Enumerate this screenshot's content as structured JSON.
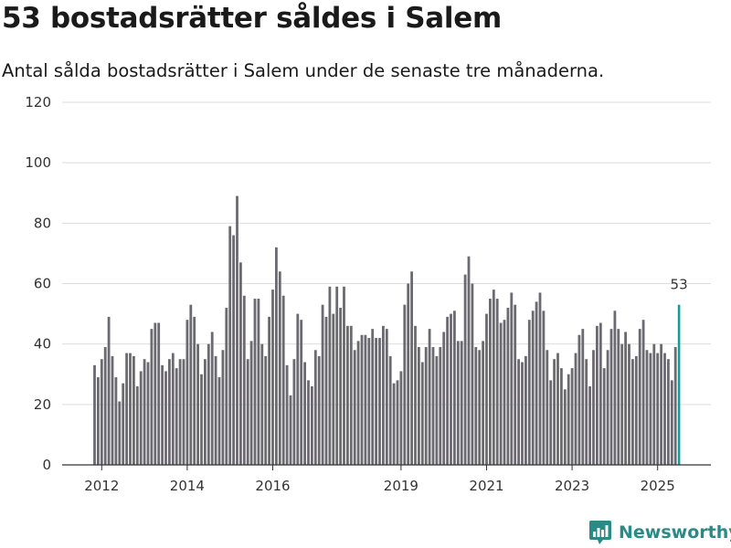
{
  "header": {
    "title": "53 bostadsrätter såldes i Salem",
    "subtitle": "Antal sålda bostadsrätter i Salem under de senaste tre månaderna."
  },
  "brand": {
    "name": "Newsworthy",
    "icon": "newsworthy-chart-icon",
    "color": "#2a8a86"
  },
  "colors": {
    "bar": "#6b6a70",
    "highlight": "#1a9a94",
    "grid": "#dddddd",
    "axis": "#333333"
  },
  "chart_data": {
    "type": "bar",
    "title": "53 bostadsrätter såldes i Salem",
    "xlabel": "",
    "ylabel": "",
    "ylim": [
      0,
      120
    ],
    "yticks": [
      0,
      20,
      40,
      60,
      80,
      100,
      120
    ],
    "x_start": "2011-11",
    "xticks": [
      {
        "label": "2012",
        "index": 2
      },
      {
        "label": "2014",
        "index": 26
      },
      {
        "label": "2016",
        "index": 50
      },
      {
        "label": "2019",
        "index": 86
      },
      {
        "label": "2021",
        "index": 110
      },
      {
        "label": "2023",
        "index": 134
      },
      {
        "label": "2025",
        "index": 158
      }
    ],
    "values": [
      33,
      29,
      35,
      39,
      49,
      36,
      29,
      21,
      27,
      37,
      37,
      36,
      26,
      31,
      35,
      34,
      45,
      47,
      47,
      33,
      31,
      35,
      37,
      32,
      35,
      35,
      48,
      53,
      49,
      40,
      30,
      35,
      40,
      44,
      36,
      29,
      38,
      52,
      79,
      76,
      89,
      67,
      56,
      35,
      41,
      55,
      55,
      40,
      36,
      49,
      58,
      72,
      64,
      56,
      33,
      23,
      35,
      50,
      48,
      34,
      28,
      26,
      38,
      36,
      53,
      49,
      59,
      50,
      59,
      52,
      59,
      46,
      46,
      38,
      41,
      43,
      43,
      42,
      45,
      42,
      42,
      46,
      45,
      36,
      27,
      28,
      31,
      53,
      60,
      64,
      46,
      39,
      34,
      39,
      45,
      39,
      36,
      39,
      44,
      49,
      50,
      51,
      41,
      41,
      63,
      69,
      60,
      39,
      38,
      41,
      50,
      55,
      58,
      55,
      47,
      48,
      52,
      57,
      53,
      35,
      34,
      36,
      48,
      51,
      54,
      57,
      51,
      38,
      28,
      35,
      37,
      32,
      25,
      30,
      32,
      37,
      43,
      45,
      35,
      26,
      38,
      46,
      47,
      32,
      38,
      45,
      51,
      45,
      40,
      44,
      40,
      35,
      36,
      45,
      48,
      38,
      37,
      40,
      37,
      40,
      37,
      35,
      28,
      39,
      53
    ],
    "highlight_index": 164,
    "highlight_label": "53"
  }
}
